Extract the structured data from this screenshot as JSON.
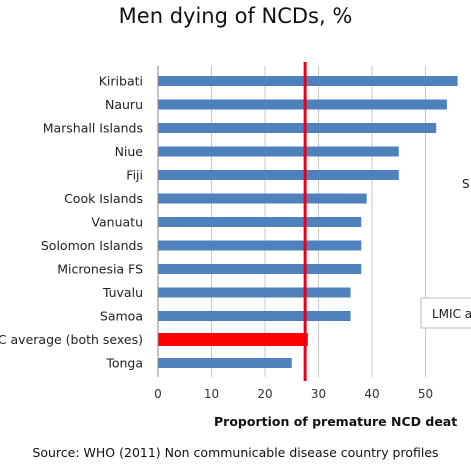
{
  "chart_data": {
    "type": "bar",
    "orientation": "horizontal",
    "title": "Men dying of NCDs, %",
    "xlabel": "Proportion of premature NCD deat",
    "ylabel": "",
    "xlim": [
      0,
      55
    ],
    "xticks": [
      0,
      10,
      20,
      30,
      40,
      50
    ],
    "grid": "vertical",
    "categories": [
      "Kiribati",
      "Nauru",
      "Marshall Islands",
      "Niue",
      "Fiji",
      "Cook Islands",
      "Vanuatu",
      "Solomon Islands",
      "Micronesia FS",
      "Tuvalu",
      "Samoa",
      "MIC average (both sexes)",
      "Tonga"
    ],
    "values": [
      56,
      54,
      52,
      45,
      45,
      39,
      38,
      38,
      38,
      36,
      36,
      28,
      25
    ],
    "highlight_index": 11,
    "reference_line": {
      "value": 27.5
    },
    "side_labels": [
      "S",
      "LMIC a"
    ],
    "colors": {
      "bar": "#4f81bd",
      "highlight": "#ff0000",
      "reference_line": "#e8001c",
      "grid": "#c8c8c8"
    }
  },
  "source": "Source: WHO (2011) Non communicable disease country profiles"
}
